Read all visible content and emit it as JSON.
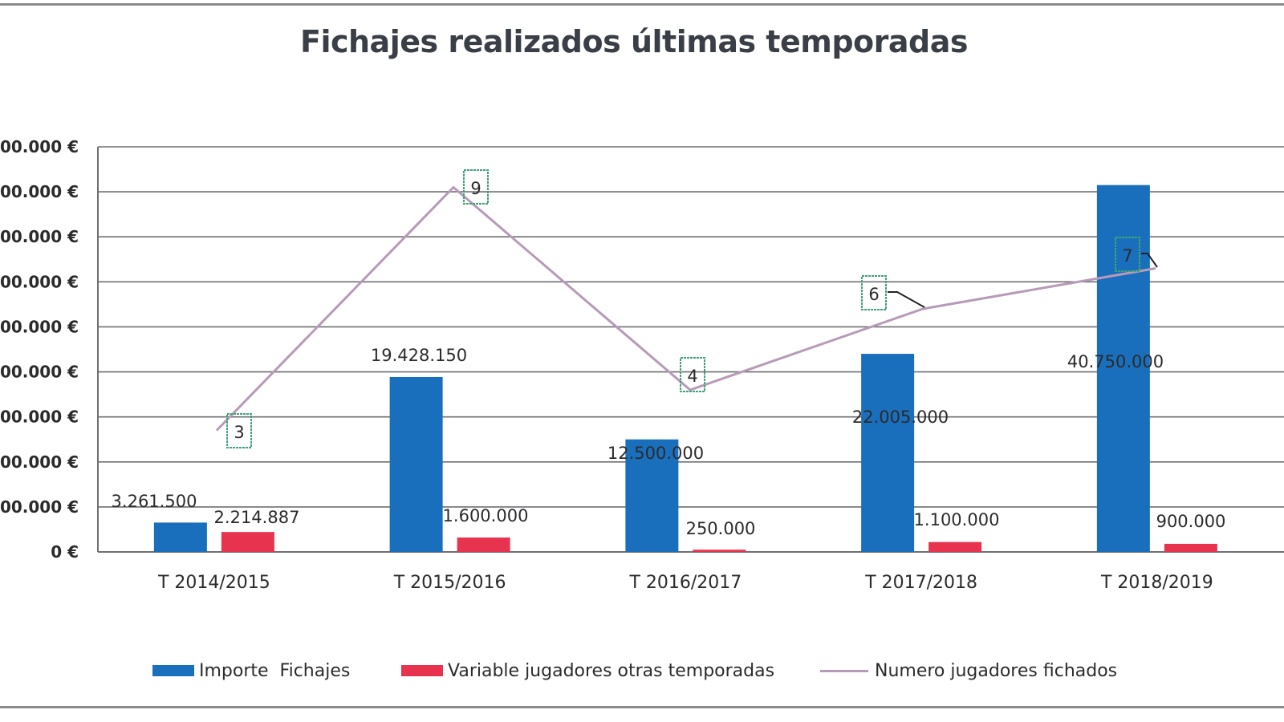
{
  "title": "Fichajes realizados últimas temporadas",
  "colors": {
    "importe": "#1a6fbd",
    "variable": "#e8334f",
    "numero": "#b79ab8",
    "grid": "#6f6f75",
    "label_box": "#3fa37a"
  },
  "legend": {
    "items": [
      {
        "label": "Importe  Fichajes",
        "type": "bar",
        "color": "#1a6fbd"
      },
      {
        "label": "Variable jugadores otras temporadas",
        "type": "bar",
        "color": "#e8334f"
      },
      {
        "label": "Numero jugadores fichados",
        "type": "line",
        "color": "#b79ab8"
      }
    ]
  },
  "y_axis": {
    "ticks": [
      "0 €",
      "00.000 €",
      "00.000 €",
      "00.000 €",
      "00.000 €",
      "00.000 €",
      "00.000 €",
      "00.000 €",
      "00.000 €",
      "00.000 €"
    ]
  },
  "chart_data": {
    "type": "bar",
    "title": "Fichajes realizados últimas temporadas",
    "xlabel": "",
    "ylabel": "",
    "categories": [
      "T 2014/2015",
      "T 2015/2016",
      "T 2016/2017",
      "T 2017/2018",
      "T 2018/2019"
    ],
    "series": [
      {
        "name": "Importe  Fichajes",
        "type": "bar",
        "color": "#1a6fbd",
        "values": [
          3261500,
          19428150,
          12500000,
          22005000,
          40750000
        ],
        "labels": [
          "3.261.500",
          "19.428.150",
          "12.500.000",
          "22.005.000",
          "40.750.000"
        ]
      },
      {
        "name": "Variable jugadores otras temporadas",
        "type": "bar",
        "color": "#e8334f",
        "values": [
          2214887,
          1600000,
          250000,
          1100000,
          900000
        ],
        "labels": [
          "2.214.887",
          "1.600.000",
          "250.000",
          "1.100.000",
          "900.000"
        ]
      },
      {
        "name": "Numero jugadores fichados",
        "type": "line",
        "axis": "secondary",
        "color": "#b79ab8",
        "values": [
          3,
          9,
          4,
          6,
          7
        ],
        "labels": [
          "3",
          "9",
          "4",
          "6",
          "7"
        ]
      }
    ],
    "ylim": [
      0,
      45000000
    ],
    "y_tick_step": 5000000,
    "y_tick_labels_visible": [
      "0 €",
      "00.000 €",
      "00.000 €",
      "00.000 €",
      "00.000 €",
      "00.000 €",
      "00.000 €",
      "00.000 €",
      "00.000 €",
      "00.000 €"
    ],
    "y2lim": [
      0,
      10
    ],
    "grid": true,
    "legend_position": "bottom"
  }
}
